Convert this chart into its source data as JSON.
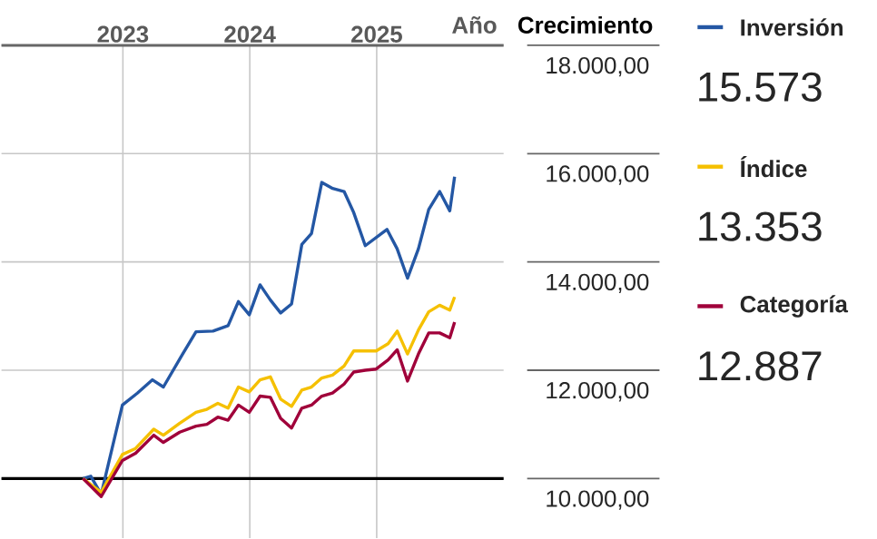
{
  "chart_data": {
    "type": "line",
    "xlabel": "Año",
    "ylabel": "Crecimiento",
    "x": [
      2022.686,
      2022.829,
      2022.996,
      2023.1,
      2023.243,
      2023.319,
      2023.448,
      2023.576,
      2023.662,
      2023.748,
      2023.829,
      2023.91,
      2023.996,
      2024.081,
      2024.162,
      2024.243,
      2024.329,
      2024.41,
      2024.486,
      2024.567,
      2024.652,
      2024.743,
      2024.819,
      2024.91,
      2024.996,
      2025.09,
      2025.162,
      2025.243,
      2025.329,
      2025.41,
      2025.496,
      2025.576,
      2025.614
    ],
    "series": [
      {
        "name": "Inversión",
        "color": "#2457a4",
        "x": [
          2022.686,
          2022.747,
          2022.829,
          2022.996,
          2023.114,
          2023.233,
          2023.319,
          2023.471,
          2023.576,
          2023.71,
          2023.829,
          2023.91,
          2023.996,
          2024.081,
          2024.161,
          2024.243,
          2024.329,
          2024.41,
          2024.486,
          2024.567,
          2024.653,
          2024.743,
          2024.819,
          2024.91,
          2025.081,
          2025.161,
          2025.243,
          2025.329,
          2025.41,
          2025.496,
          2025.576,
          2025.614
        ],
        "values": [
          10000,
          10043,
          9710,
          11357,
          11577,
          11823,
          11690,
          12300,
          12710,
          12723,
          12823,
          13267,
          13023,
          13577,
          13300,
          13057,
          13223,
          14323,
          14523,
          15467,
          15357,
          15300,
          14910,
          14300,
          14600,
          14243,
          13700,
          14243,
          14967,
          15300,
          14943,
          15573
        ]
      },
      {
        "name": "Índice",
        "color": "#f5c000",
        "values": [
          10000,
          9744,
          10444,
          10556,
          10911,
          10800,
          11022,
          11222,
          11278,
          11389,
          11300,
          11689,
          11600,
          11822,
          11878,
          11467,
          11333,
          11633,
          11689,
          11856,
          11911,
          12078,
          12356,
          12356,
          12356,
          12489,
          12722,
          12300,
          12744,
          13078,
          13200,
          13111,
          13353
        ]
      },
      {
        "name": "Categoría",
        "color": "#a0003a",
        "values": [
          10000,
          9667,
          10333,
          10467,
          10800,
          10667,
          10856,
          10967,
          11000,
          11133,
          11078,
          11356,
          11222,
          11522,
          11500,
          11111,
          10933,
          11300,
          11356,
          11522,
          11578,
          11744,
          11967,
          12000,
          12022,
          12189,
          12378,
          11800,
          12300,
          12689,
          12689,
          12600,
          12887
        ]
      }
    ],
    "xlim": [
      2022.043,
      2026.0
    ],
    "xticks": [
      2023,
      2024,
      2025
    ],
    "ylim": [
      8900,
      18000
    ],
    "yticks": [
      {
        "value": 10000,
        "label": "10.000,00"
      },
      {
        "value": 12000,
        "label": "12.000,00"
      },
      {
        "value": 14000,
        "label": "14.000,00"
      },
      {
        "value": 16000,
        "label": "16.000,00"
      },
      {
        "value": 18000,
        "label": "18.000,00"
      }
    ],
    "ref_lines": [
      {
        "axis": "y",
        "value": 10000,
        "color": "#000000"
      }
    ],
    "grid": true,
    "legend": "right",
    "marker": "none",
    "line_style": "solid",
    "annotations": [
      "15.573",
      "13.353",
      "12.887"
    ]
  }
}
